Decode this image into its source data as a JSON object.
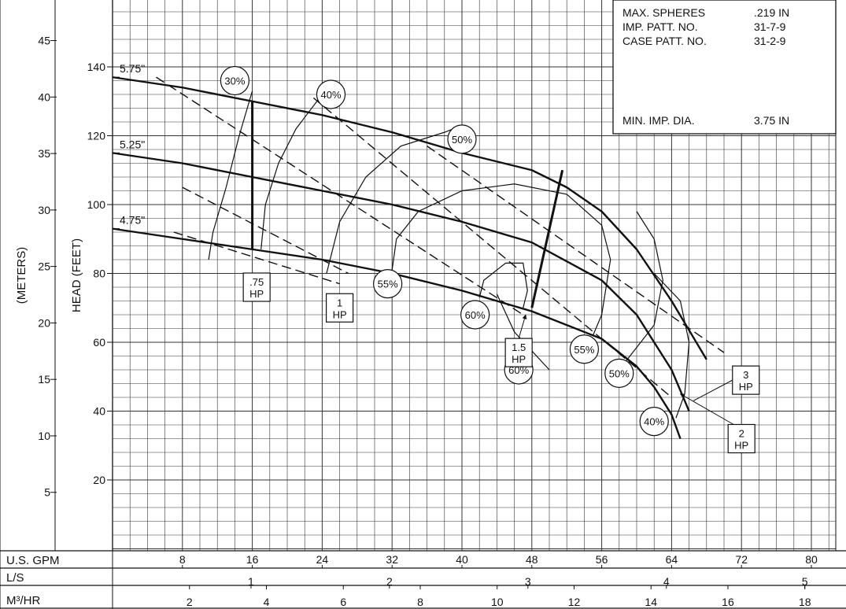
{
  "chart_data": {
    "type": "line",
    "title": "",
    "xlabel": "U.S. GPM",
    "ylabel": "HEAD (FEET)",
    "ylabel_secondary": "(METERS)",
    "xlim": [
      0,
      82
    ],
    "ylim": [
      0,
      160
    ],
    "x_ticks": [
      "8",
      "16",
      "24",
      "32",
      "40",
      "48",
      "56",
      "64",
      "72",
      "80"
    ],
    "y_ticks_feet": [
      "20",
      "40",
      "60",
      "80",
      "100",
      "120",
      "140"
    ],
    "y_ticks_meters": [
      "5",
      "10",
      "15",
      "20",
      "25",
      "30",
      "35",
      "40",
      "45"
    ],
    "scales": [
      {
        "label": "U.S. GPM",
        "ticks": [
          "8",
          "16",
          "24",
          "32",
          "40",
          "48",
          "56",
          "64",
          "72",
          "80"
        ]
      },
      {
        "label": "L/S",
        "ticks": [
          "1",
          "2",
          "3",
          "4",
          "5"
        ]
      },
      {
        "label": "M³/HR",
        "ticks": [
          "2",
          "4",
          "6",
          "8",
          "10",
          "12",
          "14",
          "16",
          "18"
        ]
      }
    ],
    "info_box": [
      {
        "label": "MAX. SPHERES",
        "value": ".219 IN"
      },
      {
        "label": "IMP. PATT. NO.",
        "value": "31-7-9"
      },
      {
        "label": "CASE PATT. NO.",
        "value": "31-2-9"
      },
      {
        "label": "MIN. IMP. DIA.",
        "value": "3.75 IN"
      }
    ],
    "series": [
      {
        "name": "5.75\"",
        "x": [
          0,
          8,
          16,
          24,
          32,
          40,
          48,
          52,
          56,
          60,
          64,
          68
        ],
        "y": [
          137,
          134,
          130,
          126,
          121,
          115,
          110,
          105,
          98,
          87,
          72,
          55
        ]
      },
      {
        "name": "5.25\"",
        "x": [
          0,
          8,
          16,
          24,
          32,
          40,
          48,
          56,
          60,
          64,
          66
        ],
        "y": [
          115,
          112,
          108,
          104,
          100,
          95,
          89,
          78,
          68,
          52,
          40
        ]
      },
      {
        "name": "4.75\"",
        "x": [
          0,
          8,
          16,
          24,
          32,
          40,
          48,
          56,
          60,
          62,
          64,
          65
        ],
        "y": [
          93,
          90,
          87,
          84,
          80,
          75,
          69,
          61,
          53,
          47,
          39,
          32
        ]
      }
    ],
    "efficiency_labels": [
      "30%",
      "40%",
      "50%",
      "55%",
      "60%",
      "60%",
      "55%",
      "50%",
      "40%"
    ],
    "hp_labels": [
      ".75 HP",
      "1 HP",
      "1.5 HP",
      "2 HP",
      "3 HP"
    ]
  }
}
